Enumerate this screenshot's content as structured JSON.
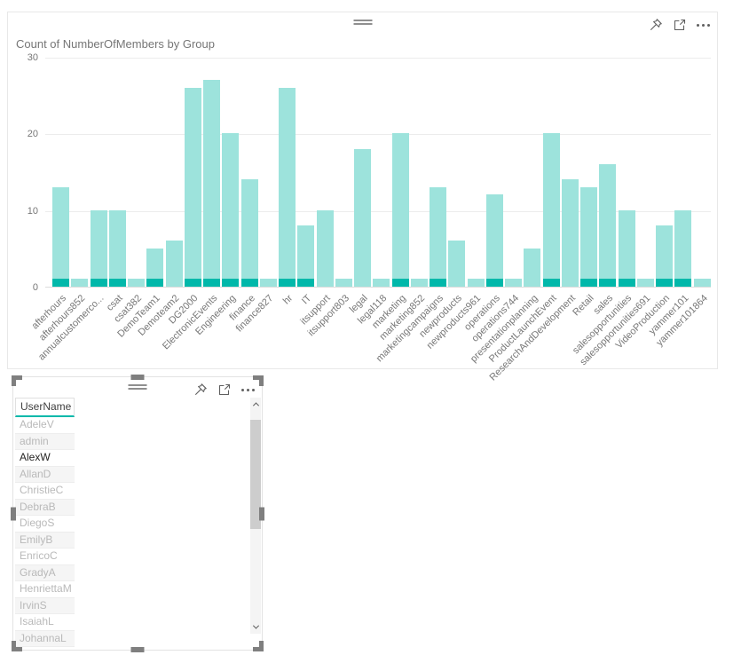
{
  "colors": {
    "bar_highlight": "#01B8AA",
    "bar_dim": "#9DE3DC",
    "header_underline": "#01B8AA",
    "axis_text": "#777777",
    "title_text": "#767676"
  },
  "chart_visual": {
    "title": "Count of NumberOfMembers by Group",
    "header_icons": [
      {
        "name": "pin-icon",
        "label": "Pin visual"
      },
      {
        "name": "focus-mode-icon",
        "label": "Focus mode"
      },
      {
        "name": "more-options-icon",
        "label": "More options"
      }
    ],
    "chart_data": {
      "type": "bar",
      "title": "Count of NumberOfMembers by Group",
      "categories": [
        "afterhours",
        "afterhours852",
        "annualcustomerco...",
        "csat",
        "csat382",
        "DemoTeam1",
        "Demoteam2",
        "DG2000",
        "ElectronicEvents",
        "Engineering",
        "finance",
        "finance827",
        "hr",
        "IT",
        "itsupport",
        "itsupport803",
        "legal",
        "legal118",
        "marketing",
        "marketing852",
        "marketingcampaigns",
        "newproducts",
        "newproducts961",
        "operations",
        "operations744",
        "presentationplanning",
        "ProductLaunchEvent",
        "ResearchAndDevelopment",
        "Retail",
        "sales",
        "salesopportunities",
        "salesopportunities691",
        "VideoProduction",
        "yammer101",
        "yammer101864"
      ],
      "series": [
        {
          "name": "Count of NumberOfMembers (highlighted selection)",
          "color": "#01B8AA",
          "values": [
            1,
            0,
            1,
            1,
            0,
            1,
            0,
            1,
            1,
            1,
            1,
            0,
            1,
            1,
            0,
            0,
            0,
            0,
            1,
            0,
            1,
            0,
            0,
            1,
            0,
            0,
            1,
            0,
            1,
            1,
            1,
            0,
            1,
            1,
            0
          ]
        },
        {
          "name": "Count of NumberOfMembers (total)",
          "color": "#9DE3DC",
          "values": [
            13,
            1,
            10,
            10,
            1,
            5,
            6,
            26,
            27,
            20,
            14,
            1,
            26,
            8,
            10,
            1,
            18,
            1,
            20,
            1,
            13,
            6,
            1,
            12,
            1,
            5,
            20,
            14,
            13,
            16,
            10,
            1,
            8,
            10,
            1
          ]
        }
      ],
      "xlabel": "",
      "ylabel": "",
      "y_ticks": [
        0,
        10,
        20,
        30
      ],
      "ylim": [
        0,
        30
      ],
      "grid": true,
      "legend": "none",
      "x_label_rotation": -45
    }
  },
  "table_visual": {
    "column_header": "UserName",
    "selected_value": "AlexW",
    "header_icons": [
      {
        "name": "pin-icon",
        "label": "Pin visual"
      },
      {
        "name": "focus-mode-icon",
        "label": "Focus mode"
      },
      {
        "name": "more-options-icon",
        "label": "More options"
      }
    ],
    "rows": [
      {
        "label": "AdeleV",
        "selected": false
      },
      {
        "label": "admin",
        "selected": false
      },
      {
        "label": "AlexW",
        "selected": true
      },
      {
        "label": "AllanD",
        "selected": false
      },
      {
        "label": "ChristieC",
        "selected": false
      },
      {
        "label": "DebraB",
        "selected": false
      },
      {
        "label": "DiegoS",
        "selected": false
      },
      {
        "label": "EmilyB",
        "selected": false
      },
      {
        "label": "EnricoC",
        "selected": false
      },
      {
        "label": "GradyA",
        "selected": false
      },
      {
        "label": "HenriettaM",
        "selected": false
      },
      {
        "label": "IrvinS",
        "selected": false
      },
      {
        "label": "IsaiahL",
        "selected": false
      },
      {
        "label": "JohannaL",
        "selected": false
      }
    ]
  }
}
